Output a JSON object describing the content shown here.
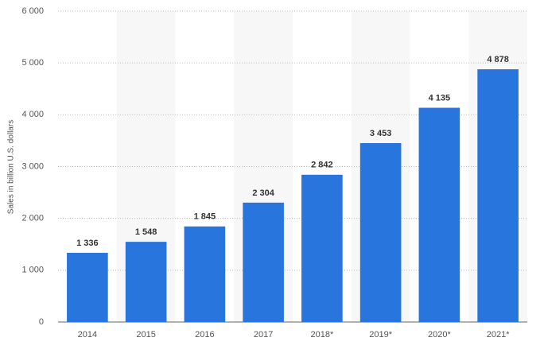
{
  "chart_data": {
    "type": "bar",
    "y_label": "Sales in billion U.S. dollars",
    "categories": [
      "2014",
      "2015",
      "2016",
      "2017",
      "2018*",
      "2019*",
      "2020*",
      "2021*"
    ],
    "values": [
      1336,
      1548,
      1845,
      2304,
      2842,
      3453,
      4135,
      4878
    ],
    "value_labels": [
      "1 336",
      "1 548",
      "1 845",
      "2 304",
      "2 842",
      "3 453",
      "4 135",
      "4 878"
    ],
    "color": "#2876dd",
    "ylim": [
      0,
      6000
    ],
    "yticks": [
      0,
      {
        "value": 1000,
        "label": "1 000"
      },
      {
        "value": 2000,
        "label": "2 000"
      },
      {
        "value": 3000,
        "label": "3 000"
      },
      {
        "value": 4000,
        "label": "4 000"
      },
      {
        "value": 5000,
        "label": "5 000"
      },
      {
        "value": 6000,
        "label": "6 000"
      }
    ],
    "grid": true
  }
}
